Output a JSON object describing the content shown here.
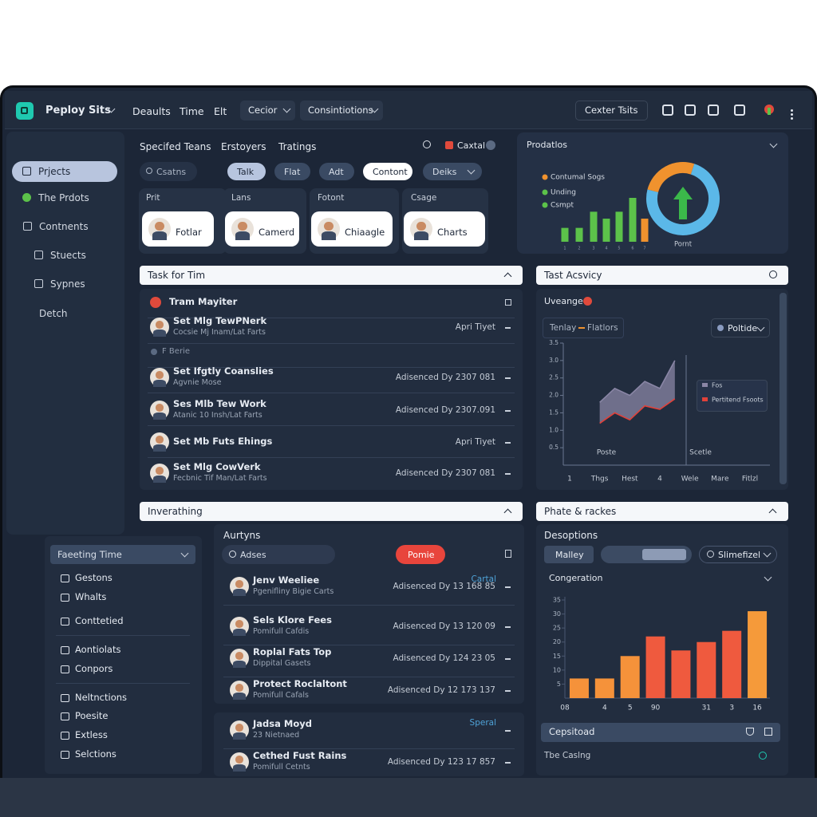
{
  "top_bar": {
    "brand": "Peploy Sits",
    "menu": [
      "Deaults",
      "Time",
      "Elt"
    ],
    "dropdowns": [
      "Cecior",
      "Consintiotions"
    ],
    "button": "Cexter Tsits"
  },
  "sidebar": {
    "items": [
      "Prjects",
      "The Prdots",
      "Contnents",
      "Stuects",
      "Sypnes",
      "Detch"
    ]
  },
  "filters": {
    "tabs": [
      "Specifed Teans",
      "Erstoyers",
      "Tratings"
    ],
    "search_label": "Caxtal",
    "search": "Csatns",
    "chips": [
      "Talk",
      "Flat",
      "Adt",
      "Contont",
      "Deiks"
    ]
  },
  "cards": [
    {
      "header": "Prit",
      "name": "Fotlar"
    },
    {
      "header": "Lans",
      "name": "Camerd"
    },
    {
      "header": "Fotont",
      "name": "Chiaagle"
    },
    {
      "header": "Csage",
      "name": "Charts"
    }
  ],
  "task_panel": {
    "title": "Task for Tim",
    "items": [
      {
        "title": "Tram Mayiter"
      },
      {
        "title": "Set Mlg TewPNerk",
        "sub": "Cocsie Mj Inam/Lat Farts",
        "status": "Apri Tiyet"
      },
      {
        "title": "F Berie"
      },
      {
        "title": "Set Ifgtly Coanslies",
        "sub": "Agvnie Mose",
        "status": "Adisenced Dy 2307 081"
      },
      {
        "title": "Ses Mlb Tew Work",
        "sub": "Atanic 10 Insh/Lat Farts",
        "status": "Adisenced Dy 2307.091"
      },
      {
        "title": "Set Mb Futs Ehings",
        "status": "Apri Tiyet"
      },
      {
        "title": "Set Mlg CowVerk",
        "sub": "Fecbnic Tif Man/Lat Farts",
        "status": "Adisenced Dy 2307 081"
      }
    ]
  },
  "activity_panel": {
    "title": "Tast Acsvicy",
    "toolbar": [
      "Tenlay",
      "Flatlors"
    ],
    "dropdown": "Poltide"
  },
  "lower_panel": {
    "title": "Inverathing",
    "dropdown": "Faeeting Time",
    "items": [
      "Gestons",
      "Whalts",
      "Conttetied",
      "Aontiolats",
      "Conpors",
      "Neltnctions",
      "Poesite",
      "Extless",
      "Selctions"
    ]
  },
  "actions": {
    "title": "Aurtyns",
    "search": "Adses",
    "button": "Pomie",
    "rows": [
      {
        "title": "Jenv Weeliee",
        "sub": "Pgenifliny Bigie Carts",
        "status": "Adisenced Dy 13 168 85",
        "tag": "Cartal"
      },
      {
        "title": "Sels Klore Fees",
        "sub": "Pomifull Cafdis",
        "status": "Adisenced Dy 13 120 09"
      },
      {
        "title": "Roplal Fats Top",
        "sub": "Dippital Gasets",
        "status": "Adisenced Dy 124 23 05"
      },
      {
        "title": "Protect Roclaltont",
        "sub": "Pomifull Cafals",
        "status": "Adisenced Dy 12 173 137"
      }
    ],
    "extra_rows": [
      {
        "title": "Jadsa Moyd",
        "sub": "23 Nietnaed",
        "tag": "Speral"
      },
      {
        "title": "Cethed Fust Rains",
        "sub": "Pomifull Cetnts",
        "status": "Adisenced Dy 123 17 857"
      }
    ]
  },
  "right_panel": {
    "title": "Phate & rackes",
    "subtitle": "Desoptions",
    "buttons": [
      "Malley",
      "Slimefizel"
    ],
    "footer": "Cepsitoad",
    "footer_note": "Tbe Caslng"
  },
  "chart_data": [
    {
      "type": "bar",
      "title": "Prodatlos",
      "xlabel": "Pornt",
      "categories": [
        "1",
        "2",
        "3",
        "4",
        "5",
        "6",
        "7"
      ],
      "values": [
        12,
        12,
        26,
        20,
        26,
        38,
        20
      ],
      "colors": [
        "#5cc24a",
        "#5cc24a",
        "#5cc24a",
        "#5cc24a",
        "#5cc24a",
        "#5cc24a",
        "#f0922e"
      ],
      "legend": [
        {
          "name": "Contumal Sogs",
          "color": "#f0922e"
        },
        {
          "name": "Unding",
          "color": "#5cc24a"
        },
        {
          "name": "Csmpt",
          "color": "#5cc24a"
        }
      ]
    },
    {
      "type": "pie",
      "values": [
        26,
        74
      ],
      "colors": [
        "#f0922e",
        "#5bb8e8"
      ]
    },
    {
      "type": "area",
      "subtitle": "Uveange",
      "categories": [
        "1",
        null,
        "Thgs",
        null,
        "Hest",
        null,
        "4",
        null,
        "Wele",
        null,
        "Mare",
        null,
        "Fitlzl"
      ],
      "series": [
        {
          "name": "Fos",
          "color": "#8a86a6",
          "values": [
            null,
            null,
            1.8,
            2.2,
            2.0,
            2.4,
            2.2,
            3.0,
            null,
            null,
            null,
            null,
            null
          ]
        },
        {
          "name": "Pertitend Fsoots",
          "color": "#e0413a",
          "values": [
            null,
            null,
            1.2,
            1.5,
            1.3,
            1.7,
            1.6,
            1.9,
            null,
            null,
            null,
            null,
            null
          ]
        }
      ],
      "ylim": [
        0,
        3.5
      ],
      "yticks": [
        0.5,
        {
          "value": 1,
          "label": "1.0"
        },
        1.5,
        {
          "value": 2,
          "label": "2.0"
        },
        2.5,
        {
          "value": 3,
          "label": "3.0"
        },
        3.5
      ],
      "annotations": [
        "Poste",
        "Scetle"
      ]
    },
    {
      "type": "bar",
      "title": "Congeration",
      "categories": [
        "08",
        "4",
        "5",
        "90",
        null,
        "31",
        "3",
        "16"
      ],
      "values": [
        7,
        7,
        15,
        22,
        17,
        20,
        24,
        31
      ],
      "colors": [
        "#f5923a",
        "#f5923a",
        "#f5923a",
        "#ef5a3e",
        "#ef5a3e",
        "#ef5a3e",
        "#ef5a3e",
        "#f59a3a"
      ],
      "ylim": [
        0,
        35
      ],
      "yticks": [
        5,
        10,
        15,
        20,
        25,
        30,
        35
      ]
    }
  ]
}
